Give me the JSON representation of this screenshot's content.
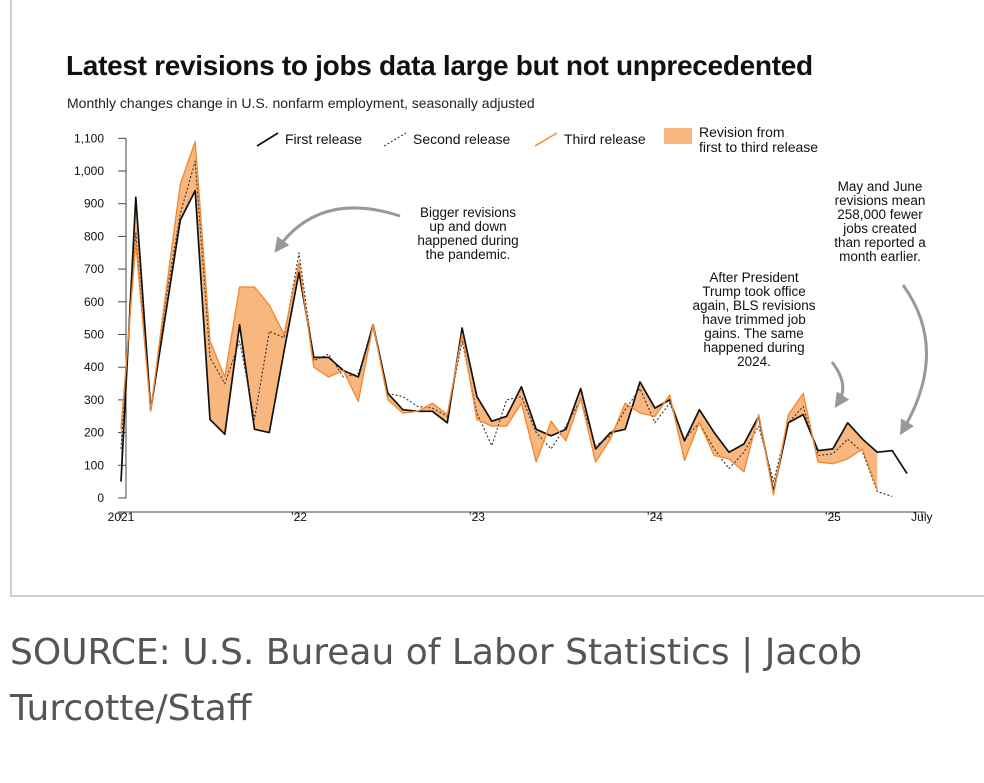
{
  "chart_data": {
    "type": "line",
    "title": "Latest revisions to jobs data large but not unprecedented",
    "subtitle": "Monthly changes change in U.S. nonfarm employment, seasonally adjusted",
    "ylim": [
      0,
      1100
    ],
    "yticks": [
      0,
      100,
      200,
      300,
      400,
      500,
      600,
      700,
      800,
      900,
      1000,
      1100
    ],
    "ytick_labels": [
      "0",
      "100",
      "200",
      "300",
      "400",
      "500",
      "600",
      "700",
      "800",
      "900",
      "1,000",
      "1,100"
    ],
    "xticks": [
      {
        "label": "2021",
        "index": 0
      },
      {
        "label": "’22",
        "index": 12
      },
      {
        "label": "’23",
        "index": 24
      },
      {
        "label": "’24",
        "index": 36
      },
      {
        "label": "’25",
        "index": 48
      },
      {
        "label": "July",
        "index": 54
      }
    ],
    "series": [
      {
        "name": "First release",
        "style": "solid",
        "color": "#111111",
        "values": [
          50,
          920,
          270,
          560,
          850,
          940,
          240,
          195,
          530,
          210,
          200,
          450,
          690,
          430,
          430,
          390,
          370,
          530,
          320,
          270,
          265,
          265,
          230,
          520,
          310,
          235,
          250,
          340,
          210,
          190,
          210,
          335,
          150,
          200,
          210,
          355,
          275,
          300,
          175,
          270,
          200,
          140,
          165,
          250,
          20,
          230,
          255,
          145,
          150,
          230,
          180,
          140,
          145,
          75
        ]
      },
      {
        "name": "Second release",
        "style": "dotted",
        "color": "#333333",
        "values": [
          150,
          810,
          265,
          600,
          870,
          1030,
          430,
          350,
          480,
          240,
          510,
          490,
          750,
          420,
          440,
          370,
          380,
          520,
          320,
          310,
          280,
          275,
          250,
          480,
          260,
          160,
          300,
          310,
          200,
          150,
          220,
          300,
          160,
          190,
          270,
          335,
          230,
          290,
          180,
          230,
          150,
          90,
          140,
          220,
          50,
          230,
          280,
          130,
          135,
          180,
          140,
          20,
          5,
          null
        ]
      },
      {
        "name": "Third release",
        "style": "solid",
        "color": "#f28a35",
        "values": [
          210,
          780,
          265,
          620,
          960,
          1090,
          480,
          370,
          645,
          645,
          590,
          500,
          720,
          400,
          370,
          390,
          295,
          530,
          300,
          260,
          265,
          290,
          255,
          500,
          240,
          220,
          220,
          290,
          110,
          235,
          175,
          305,
          110,
          180,
          290,
          260,
          250,
          315,
          115,
          230,
          130,
          120,
          80,
          255,
          10,
          255,
          320,
          110,
          105,
          120,
          150,
          25,
          null,
          null
        ]
      }
    ],
    "legend": [
      {
        "label": "First release",
        "kind": "solid"
      },
      {
        "label": "Second release",
        "kind": "dotted"
      },
      {
        "label": "Third release",
        "kind": "orange"
      },
      {
        "label": "Revision from first to third release",
        "kind": "area",
        "lines": [
          "Revision from",
          "first to third release"
        ]
      }
    ],
    "annotations": [
      {
        "lines": [
          "Bigger revisions",
          "up and down",
          "happened during",
          "the pandemic."
        ]
      },
      {
        "lines": [
          "After President",
          "Trump took office",
          "again, BLS revisions",
          "have trimmed job",
          "gains. The same",
          "happened during",
          "2024."
        ]
      },
      {
        "lines": [
          "May and June",
          "revisions mean",
          "258,000 fewer",
          "jobs created",
          "than reported a",
          "month earlier."
        ]
      }
    ],
    "fill_color": "#f8b77f",
    "grid": false
  },
  "source": "SOURCE: U.S. Bureau of Labor Statistics | Jacob Turcotte/Staff"
}
